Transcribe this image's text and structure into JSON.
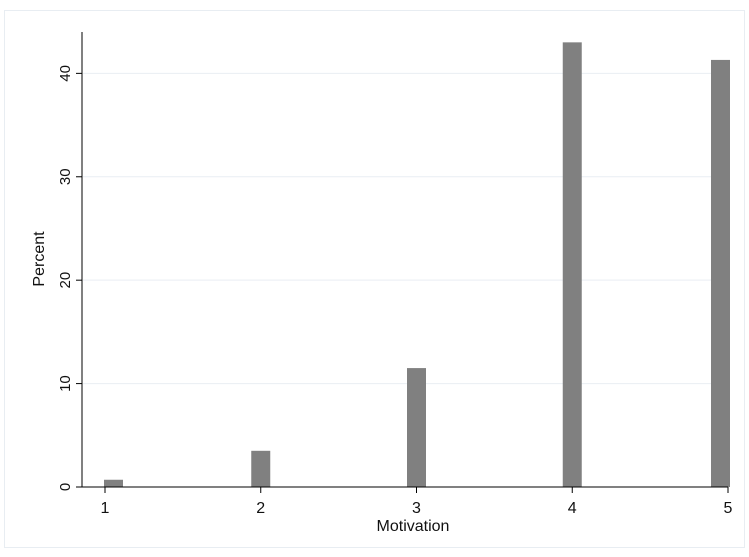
{
  "colors": {
    "bar": "#808080",
    "grid": "#e9eef3",
    "axis": "#000000",
    "border": "#e8edf2",
    "background": "#ffffff"
  },
  "chart_data": {
    "type": "bar",
    "title": "",
    "xlabel": "Motivation",
    "ylabel": "Percent",
    "categories": [
      "1",
      "2",
      "3",
      "4",
      "5"
    ],
    "x": [
      1,
      2,
      3,
      4,
      5
    ],
    "values": [
      0.7,
      3.5,
      11.5,
      43.0,
      41.3
    ],
    "xlim": [
      1,
      5
    ],
    "ylim": [
      0,
      44
    ],
    "yticks": [
      0,
      10,
      20,
      30,
      40
    ],
    "ytick_labels": [
      "0",
      "10",
      "20",
      "30",
      "40"
    ],
    "xticks": [
      1,
      2,
      3,
      4,
      5
    ],
    "xtick_labels": [
      "1",
      "2",
      "3",
      "4",
      "5"
    ],
    "grid": true,
    "legend": "none"
  }
}
